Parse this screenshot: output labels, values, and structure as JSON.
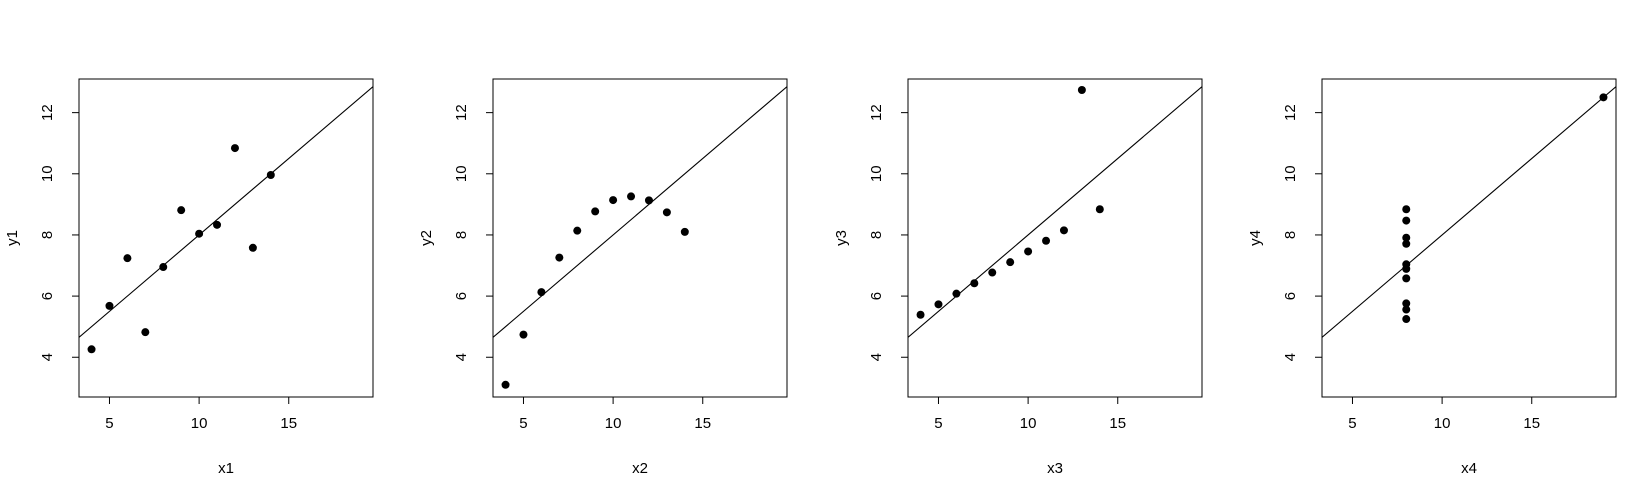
{
  "chart_data": [
    {
      "type": "scatter",
      "title": "",
      "xlabel": "x1",
      "ylabel": "y1",
      "xlim": [
        3.3,
        19.7
      ],
      "ylim": [
        2.7,
        13.1
      ],
      "xticks": [
        5,
        10,
        15
      ],
      "yticks": [
        4,
        6,
        8,
        10,
        12
      ],
      "grid": false,
      "regression": {
        "intercept": 3.0,
        "slope": 0.5
      },
      "points": [
        {
          "x": 10,
          "y": 8.04
        },
        {
          "x": 8,
          "y": 6.95
        },
        {
          "x": 13,
          "y": 7.58
        },
        {
          "x": 9,
          "y": 8.81
        },
        {
          "x": 11,
          "y": 8.33
        },
        {
          "x": 14,
          "y": 9.96
        },
        {
          "x": 6,
          "y": 7.24
        },
        {
          "x": 4,
          "y": 4.26
        },
        {
          "x": 12,
          "y": 10.84
        },
        {
          "x": 7,
          "y": 4.82
        },
        {
          "x": 5,
          "y": 5.68
        }
      ]
    },
    {
      "type": "scatter",
      "title": "",
      "xlabel": "x2",
      "ylabel": "y2",
      "xlim": [
        3.3,
        19.7
      ],
      "ylim": [
        2.7,
        13.1
      ],
      "xticks": [
        5,
        10,
        15
      ],
      "yticks": [
        4,
        6,
        8,
        10,
        12
      ],
      "grid": false,
      "regression": {
        "intercept": 3.0,
        "slope": 0.5
      },
      "points": [
        {
          "x": 10,
          "y": 9.14
        },
        {
          "x": 8,
          "y": 8.14
        },
        {
          "x": 13,
          "y": 8.74
        },
        {
          "x": 9,
          "y": 8.77
        },
        {
          "x": 11,
          "y": 9.26
        },
        {
          "x": 14,
          "y": 8.1
        },
        {
          "x": 6,
          "y": 6.13
        },
        {
          "x": 4,
          "y": 3.1
        },
        {
          "x": 12,
          "y": 9.13
        },
        {
          "x": 7,
          "y": 7.26
        },
        {
          "x": 5,
          "y": 4.74
        }
      ]
    },
    {
      "type": "scatter",
      "title": "",
      "xlabel": "x3",
      "ylabel": "y3",
      "xlim": [
        3.3,
        19.7
      ],
      "ylim": [
        2.7,
        13.1
      ],
      "xticks": [
        5,
        10,
        15
      ],
      "yticks": [
        4,
        6,
        8,
        10,
        12
      ],
      "grid": false,
      "regression": {
        "intercept": 3.0,
        "slope": 0.5
      },
      "points": [
        {
          "x": 10,
          "y": 7.46
        },
        {
          "x": 8,
          "y": 6.77
        },
        {
          "x": 13,
          "y": 12.74
        },
        {
          "x": 9,
          "y": 7.11
        },
        {
          "x": 11,
          "y": 7.81
        },
        {
          "x": 14,
          "y": 8.84
        },
        {
          "x": 6,
          "y": 6.08
        },
        {
          "x": 4,
          "y": 5.39
        },
        {
          "x": 12,
          "y": 8.15
        },
        {
          "x": 7,
          "y": 6.42
        },
        {
          "x": 5,
          "y": 5.73
        }
      ]
    },
    {
      "type": "scatter",
      "title": "",
      "xlabel": "x4",
      "ylabel": "y4",
      "xlim": [
        3.3,
        19.7
      ],
      "ylim": [
        2.7,
        13.1
      ],
      "xticks": [
        5,
        10,
        15
      ],
      "yticks": [
        4,
        6,
        8,
        10,
        12
      ],
      "grid": false,
      "regression": {
        "intercept": 3.0,
        "slope": 0.5
      },
      "points": [
        {
          "x": 8,
          "y": 6.58
        },
        {
          "x": 8,
          "y": 5.76
        },
        {
          "x": 8,
          "y": 7.71
        },
        {
          "x": 8,
          "y": 8.84
        },
        {
          "x": 8,
          "y": 8.47
        },
        {
          "x": 8,
          "y": 7.04
        },
        {
          "x": 8,
          "y": 5.25
        },
        {
          "x": 19,
          "y": 12.5
        },
        {
          "x": 8,
          "y": 5.56
        },
        {
          "x": 8,
          "y": 7.91
        },
        {
          "x": 8,
          "y": 6.89
        }
      ]
    }
  ]
}
